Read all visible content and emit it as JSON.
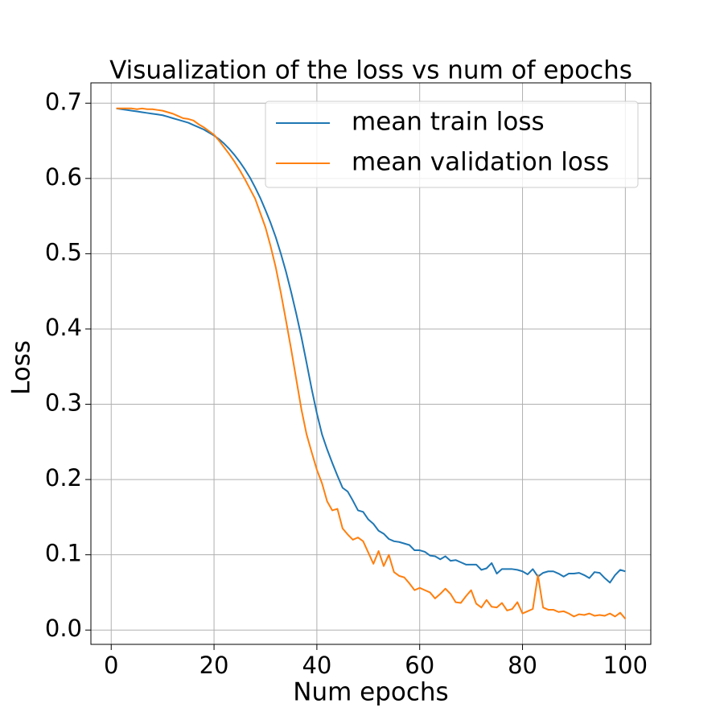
{
  "chart_data": {
    "type": "line",
    "title": "Visualization of the loss vs num of epochs",
    "x_label": "Num epochs",
    "y_label": "Loss",
    "x": [
      1,
      2,
      3,
      4,
      5,
      6,
      7,
      8,
      9,
      10,
      11,
      12,
      13,
      14,
      15,
      16,
      17,
      18,
      19,
      20,
      21,
      22,
      23,
      24,
      25,
      26,
      27,
      28,
      29,
      30,
      31,
      32,
      33,
      34,
      35,
      36,
      37,
      38,
      39,
      40,
      41,
      42,
      43,
      44,
      45,
      46,
      47,
      48,
      49,
      50,
      51,
      52,
      53,
      54,
      55,
      56,
      57,
      58,
      59,
      60,
      61,
      62,
      63,
      64,
      65,
      66,
      67,
      68,
      69,
      70,
      71,
      72,
      73,
      74,
      75,
      76,
      77,
      78,
      79,
      80,
      81,
      82,
      83,
      84,
      85,
      86,
      87,
      88,
      89,
      90,
      91,
      92,
      93,
      94,
      95,
      96,
      97,
      98,
      99,
      100
    ],
    "series": [
      {
        "name": "mean train loss",
        "color": "#1f77b4",
        "values": [
          0.693,
          0.692,
          0.691,
          0.69,
          0.689,
          0.688,
          0.687,
          0.686,
          0.685,
          0.684,
          0.682,
          0.68,
          0.678,
          0.676,
          0.674,
          0.671,
          0.668,
          0.665,
          0.661,
          0.657,
          0.652,
          0.646,
          0.639,
          0.631,
          0.622,
          0.612,
          0.601,
          0.588,
          0.574,
          0.558,
          0.541,
          0.522,
          0.5,
          0.476,
          0.449,
          0.42,
          0.389,
          0.355,
          0.32,
          0.288,
          0.26,
          0.24,
          0.222,
          0.205,
          0.189,
          0.184,
          0.172,
          0.159,
          0.157,
          0.147,
          0.141,
          0.132,
          0.128,
          0.121,
          0.118,
          0.117,
          0.115,
          0.113,
          0.106,
          0.106,
          0.104,
          0.099,
          0.098,
          0.094,
          0.098,
          0.092,
          0.093,
          0.09,
          0.087,
          0.087,
          0.087,
          0.08,
          0.082,
          0.089,
          0.075,
          0.081,
          0.081,
          0.081,
          0.08,
          0.078,
          0.074,
          0.081,
          0.071,
          0.076,
          0.078,
          0.078,
          0.075,
          0.071,
          0.075,
          0.075,
          0.076,
          0.073,
          0.069,
          0.077,
          0.076,
          0.069,
          0.063,
          0.073,
          0.08,
          0.078
        ]
      },
      {
        "name": "mean validation loss",
        "color": "#ff7f0e",
        "values": [
          0.693,
          0.693,
          0.693,
          0.693,
          0.692,
          0.693,
          0.692,
          0.692,
          0.691,
          0.69,
          0.688,
          0.686,
          0.683,
          0.68,
          0.679,
          0.677,
          0.672,
          0.668,
          0.663,
          0.658,
          0.65,
          0.641,
          0.632,
          0.622,
          0.611,
          0.599,
          0.586,
          0.573,
          0.554,
          0.535,
          0.51,
          0.482,
          0.448,
          0.411,
          0.373,
          0.333,
          0.293,
          0.26,
          0.236,
          0.213,
          0.195,
          0.171,
          0.159,
          0.161,
          0.135,
          0.127,
          0.12,
          0.123,
          0.118,
          0.103,
          0.088,
          0.105,
          0.085,
          0.1,
          0.077,
          0.072,
          0.07,
          0.062,
          0.053,
          0.056,
          0.053,
          0.05,
          0.042,
          0.048,
          0.055,
          0.048,
          0.037,
          0.036,
          0.045,
          0.053,
          0.035,
          0.03,
          0.04,
          0.031,
          0.03,
          0.036,
          0.026,
          0.028,
          0.037,
          0.022,
          0.025,
          0.028,
          0.073,
          0.03,
          0.027,
          0.027,
          0.024,
          0.025,
          0.022,
          0.018,
          0.021,
          0.02,
          0.022,
          0.019,
          0.02,
          0.019,
          0.022,
          0.018,
          0.023,
          0.015
        ]
      }
    ],
    "xlim": [
      -3.95,
      104.95
    ],
    "xticks": [
      0,
      20,
      40,
      60,
      80,
      100
    ],
    "ylim": [
      -0.019,
      0.727
    ],
    "yticks": [
      {
        "value": 0,
        "label": "0.0"
      },
      0.1,
      0.2,
      0.3,
      0.4,
      0.5,
      0.6,
      0.7
    ],
    "grid": true,
    "legend": "upper right"
  }
}
